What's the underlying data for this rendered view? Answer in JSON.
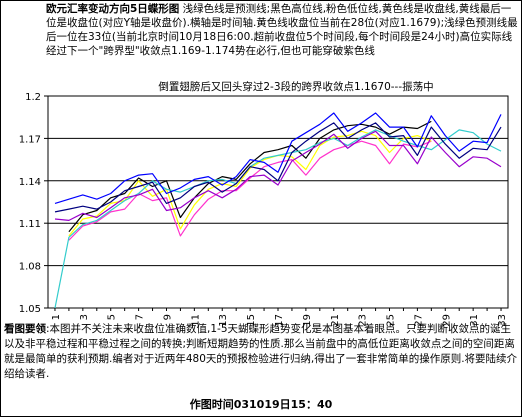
{
  "header": {
    "title": "欧元汇率变动方向5日蝶形图",
    "body": "浅绿色线是预测线;黑色高位线,粉色低位线,黄色线是收盘线,黄线最后一位是收盘位(对应Y轴是收盘价).横轴是时间轴.黄色线收盘位当前在28位(对应1.1679);浅绿色预测线最后一位在33位(当前北京时间10月18日6:00.超前收盘位5个时间段,每个时间段是24小时)高位实际线经过下一个\"跨界型\"收敛点1.169-1.174势在必行,但也可能穿破紫色线"
  },
  "banner": "倒置翅膀后又回头穿过2-3段的跨界收敛点1.1670---振荡中",
  "footer": {
    "lead": "看图要领",
    "body": ":本图并不关注未来收盘位准确数值,1-5天蝴蝶形趋势变化是本图基本着眼点。只要判断收敛点的诞生以及非平稳过程和平稳过程之间的转换;判断短期趋势的性质.那么当前盘中的高低位距离收敛点之间的空间距离就是最简单的获利预期.编者对于近两年480天的预报检验进行归纳,得出了一套非常简单的操作原则.将要陆续介绍给读者."
  },
  "timestamp": "作图时间031019日15：40",
  "colors": {
    "black": "#000000",
    "pink": "#ff33cc",
    "yellow": "#ffff00",
    "cyan": "#33cccc",
    "blue": "#0000ff",
    "navy": "#000080",
    "violet": "#9900cc",
    "grid": "#000000"
  },
  "chart_data": {
    "type": "line",
    "x": [
      1,
      2,
      3,
      4,
      5,
      6,
      7,
      8,
      9,
      10,
      11,
      12,
      13,
      14,
      15,
      16,
      17,
      18,
      19,
      20,
      21,
      22,
      23,
      24,
      25,
      26,
      27,
      28,
      29,
      30,
      31,
      32,
      33
    ],
    "xticks": [
      1,
      3,
      5,
      7,
      9,
      11,
      13,
      15,
      17,
      19,
      21,
      23,
      25,
      27,
      29,
      31,
      33
    ],
    "ylim": [
      1.05,
      1.2
    ],
    "yticks": [
      1.05,
      1.08,
      1.11,
      1.14,
      1.17,
      1.2
    ],
    "grid": true,
    "series": [
      {
        "color": "black",
        "values": [
          null,
          1.104,
          1.116,
          1.119,
          1.128,
          1.131,
          1.142,
          1.136,
          1.14,
          1.114,
          1.128,
          1.138,
          1.143,
          1.141,
          1.152,
          1.16,
          1.162,
          1.165,
          1.156,
          1.17,
          1.176,
          1.179,
          1.18,
          1.178,
          1.173,
          1.178,
          1.177,
          1.182,
          null,
          null,
          null,
          null,
          null
        ]
      },
      {
        "color": "pink",
        "values": [
          null,
          1.098,
          1.108,
          1.111,
          1.118,
          1.12,
          1.131,
          1.126,
          1.128,
          1.101,
          1.116,
          1.127,
          1.133,
          1.133,
          1.142,
          1.15,
          1.153,
          1.155,
          1.144,
          1.156,
          1.162,
          1.165,
          1.168,
          1.165,
          1.152,
          1.166,
          1.164,
          1.168,
          null,
          null,
          null,
          null,
          null
        ]
      },
      {
        "color": "yellow",
        "values": [
          null,
          1.101,
          1.113,
          1.115,
          1.124,
          1.126,
          1.14,
          1.129,
          1.134,
          1.106,
          1.123,
          1.134,
          1.138,
          1.136,
          1.149,
          1.155,
          1.158,
          1.157,
          1.148,
          1.165,
          1.171,
          1.172,
          1.175,
          1.172,
          1.16,
          1.17,
          1.172,
          1.168,
          null,
          null,
          null,
          null,
          null
        ]
      },
      {
        "color": "cyan",
        "values": [
          1.05,
          1.1,
          1.109,
          1.112,
          1.119,
          1.126,
          1.131,
          1.14,
          1.134,
          1.132,
          1.136,
          1.14,
          1.141,
          1.138,
          1.15,
          1.156,
          1.158,
          1.16,
          1.162,
          1.167,
          1.17,
          1.165,
          1.171,
          1.176,
          1.172,
          1.168,
          1.165,
          1.162,
          1.169,
          1.176,
          1.174,
          1.166,
          1.161
        ]
      },
      {
        "color": "blue",
        "values": [
          1.124,
          1.127,
          1.13,
          1.127,
          1.131,
          1.14,
          1.144,
          1.145,
          1.131,
          1.135,
          1.141,
          1.143,
          1.137,
          1.143,
          1.155,
          1.153,
          1.146,
          1.168,
          1.174,
          1.18,
          1.188,
          1.175,
          1.181,
          1.188,
          1.178,
          1.178,
          1.164,
          1.186,
          1.172,
          1.161,
          1.168,
          1.167,
          1.187
        ]
      },
      {
        "color": "navy",
        "values": [
          1.118,
          1.12,
          1.122,
          1.12,
          1.125,
          1.133,
          1.136,
          1.139,
          1.124,
          1.128,
          1.136,
          1.139,
          1.132,
          1.138,
          1.15,
          1.148,
          1.14,
          1.16,
          1.168,
          1.175,
          1.181,
          1.17,
          1.176,
          1.181,
          1.171,
          1.172,
          1.158,
          1.178,
          1.166,
          1.156,
          1.163,
          1.162,
          1.178
        ]
      },
      {
        "color": "violet",
        "values": [
          1.113,
          1.112,
          1.117,
          1.114,
          1.121,
          1.128,
          1.13,
          1.134,
          1.119,
          1.121,
          1.128,
          1.133,
          1.128,
          1.134,
          1.143,
          1.144,
          1.137,
          1.154,
          1.16,
          1.166,
          1.173,
          1.163,
          1.17,
          1.175,
          1.165,
          1.165,
          1.152,
          1.171,
          1.16,
          1.15,
          1.157,
          1.156,
          1.15
        ]
      }
    ]
  }
}
